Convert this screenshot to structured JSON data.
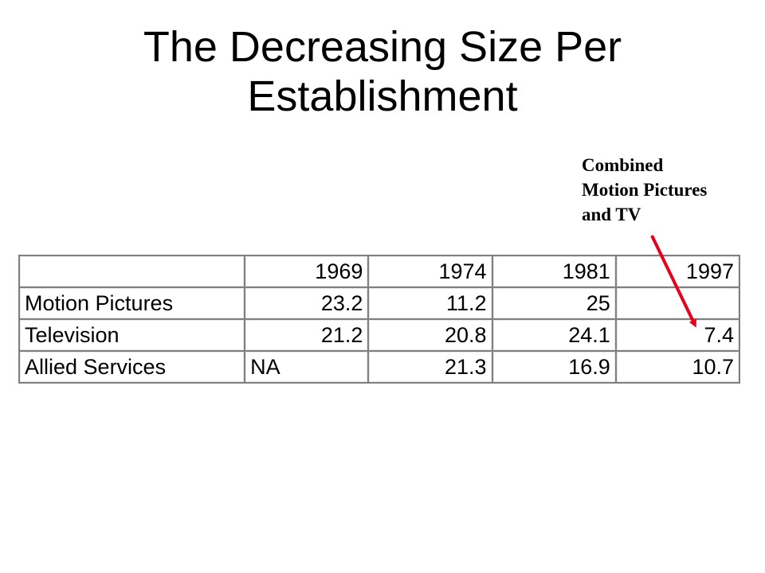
{
  "title": {
    "line1": "The Decreasing Size Per",
    "line2": "Establishment"
  },
  "annotation": {
    "line1": "Combined",
    "line2": "Motion Pictures",
    "line3": "and TV",
    "arrow_color": "#e8001c"
  },
  "table": {
    "header": [
      "",
      "1969",
      "1974",
      "1981",
      "1997"
    ],
    "rows": [
      {
        "label": "Motion Pictures",
        "values": [
          "23.2",
          "11.2",
          "25",
          ""
        ]
      },
      {
        "label": "Television",
        "values": [
          "21.2",
          "20.8",
          "24.1",
          "7.4"
        ]
      },
      {
        "label": "Allied Services",
        "values": [
          "NA",
          "21.3",
          "16.9",
          "10.7"
        ]
      }
    ]
  }
}
